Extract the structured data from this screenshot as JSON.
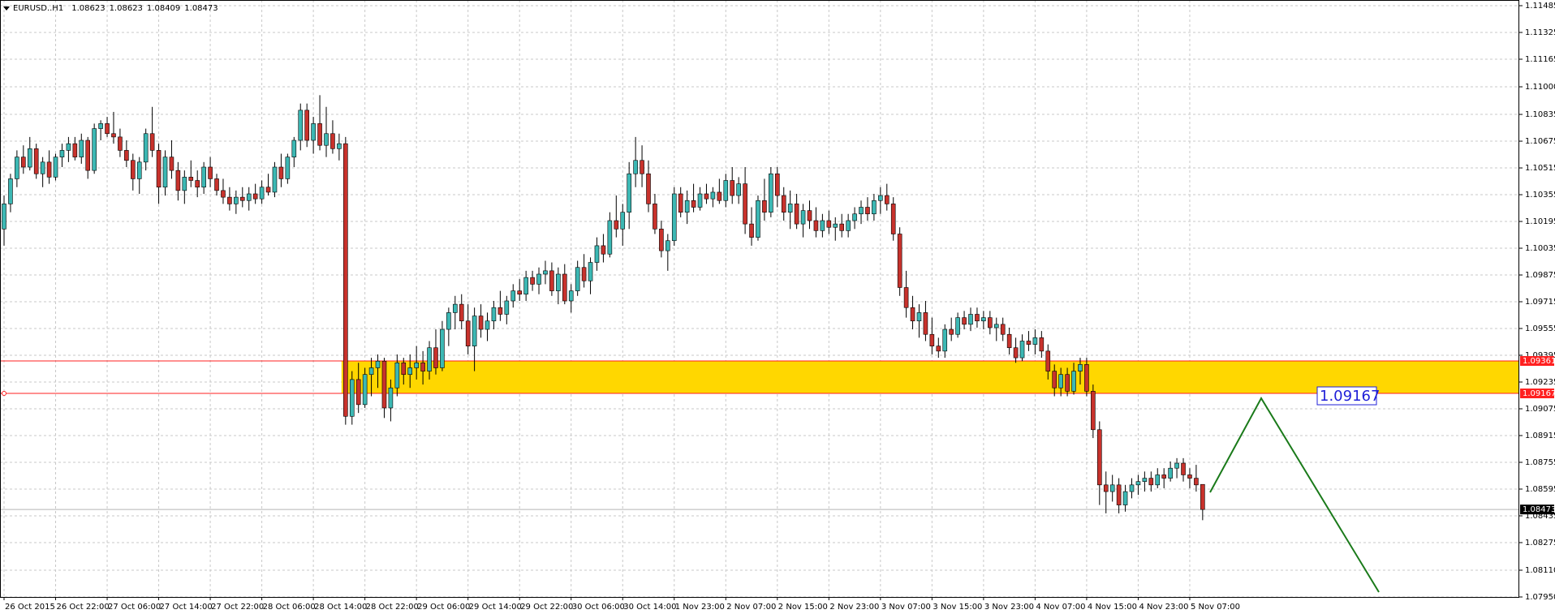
{
  "chart_data": {
    "type": "candlestick",
    "symbol": "EURUSD..H1",
    "ylim": [
      1.0795,
      1.11485
    ],
    "yticks": [
      1.11485,
      1.11325,
      1.11165,
      {
        "value": 1.11,
        "label": "1.11000"
      },
      1.10835,
      1.10675,
      1.10515,
      1.10355,
      1.10195,
      1.10035,
      1.09875,
      1.09715,
      1.09555,
      1.09395,
      1.09235,
      1.09075,
      1.08915,
      1.08755,
      1.08595,
      1.08435,
      1.08275,
      {
        "value": 1.0811,
        "label": "1.08110"
      },
      {
        "value": 1.0795,
        "label": "1.07950"
      }
    ],
    "x_labels": [
      "26 Oct 2015",
      "26 Oct 22:00",
      "27 Oct 06:00",
      "27 Oct 14:00",
      "27 Oct 22:00",
      "28 Oct 06:00",
      "28 Oct 14:00",
      "28 Oct 22:00",
      "29 Oct 06:00",
      "29 Oct 14:00",
      "29 Oct 22:00",
      "30 Oct 06:00",
      "30 Oct 14:00",
      "1 Nov 23:00",
      "2 Nov 07:00",
      "2 Nov 15:00",
      "2 Nov 23:00",
      "3 Nov 07:00",
      "3 Nov 15:00",
      "3 Nov 23:00",
      "4 Nov 07:00",
      "4 Nov 15:00",
      "4 Nov 23:00",
      "5 Nov 07:00"
    ],
    "levels": [
      1.09361,
      1.09167
    ],
    "grid": true,
    "bull_color": "#3cb8b4",
    "bear_color": "#c8322c",
    "zone_color": "#ffd700",
    "level_color": "#ff2020",
    "ohlc": [
      [
        1.1015,
        1.1035,
        1.1005,
        1.103
      ],
      [
        1.103,
        1.1048,
        1.1025,
        1.1045
      ],
      [
        1.1045,
        1.1062,
        1.104,
        1.1058
      ],
      [
        1.1058,
        1.1065,
        1.1048,
        1.1052
      ],
      [
        1.1052,
        1.107,
        1.105,
        1.1063
      ],
      [
        1.1063,
        1.1066,
        1.1045,
        1.1048
      ],
      [
        1.1048,
        1.1058,
        1.104,
        1.1055
      ],
      [
        1.1055,
        1.1062,
        1.1042,
        1.1046
      ],
      [
        1.1046,
        1.106,
        1.1044,
        1.1058
      ],
      [
        1.1058,
        1.1066,
        1.1052,
        1.1062
      ],
      [
        1.1062,
        1.107,
        1.1055,
        1.1066
      ],
      [
        1.1066,
        1.107,
        1.1056,
        1.1058
      ],
      [
        1.1058,
        1.1072,
        1.1054,
        1.1068
      ],
      [
        1.1068,
        1.107,
        1.1045,
        1.105
      ],
      [
        1.105,
        1.1078,
        1.1048,
        1.1075
      ],
      [
        1.1075,
        1.108,
        1.1068,
        1.1078
      ],
      [
        1.1078,
        1.1082,
        1.107,
        1.1072
      ],
      [
        1.1072,
        1.1085,
        1.1066,
        1.107
      ],
      [
        1.107,
        1.1075,
        1.1058,
        1.1062
      ],
      [
        1.1062,
        1.1068,
        1.1052,
        1.1056
      ],
      [
        1.1056,
        1.106,
        1.1038,
        1.1045
      ],
      [
        1.1045,
        1.1058,
        1.1036,
        1.1055
      ],
      [
        1.1055,
        1.1075,
        1.105,
        1.1072
      ],
      [
        1.1072,
        1.1088,
        1.1058,
        1.1062
      ],
      [
        1.1062,
        1.1066,
        1.103,
        1.104
      ],
      [
        1.104,
        1.1062,
        1.1035,
        1.1058
      ],
      [
        1.1058,
        1.1068,
        1.1045,
        1.105
      ],
      [
        1.105,
        1.1055,
        1.1032,
        1.1038
      ],
      [
        1.1038,
        1.105,
        1.103,
        1.1046
      ],
      [
        1.1046,
        1.1056,
        1.104,
        1.1044
      ],
      [
        1.1044,
        1.105,
        1.1034,
        1.104
      ],
      [
        1.104,
        1.1055,
        1.1036,
        1.1052
      ],
      [
        1.1052,
        1.1058,
        1.104,
        1.1045
      ],
      [
        1.1045,
        1.1048,
        1.1035,
        1.1038
      ],
      [
        1.1038,
        1.1045,
        1.103,
        1.1034
      ],
      [
        1.1034,
        1.104,
        1.1026,
        1.103
      ],
      [
        1.103,
        1.1038,
        1.1024,
        1.1034
      ],
      [
        1.1034,
        1.104,
        1.1028,
        1.1032
      ],
      [
        1.1032,
        1.104,
        1.1026,
        1.1036
      ],
      [
        1.1036,
        1.1042,
        1.103,
        1.1033
      ],
      [
        1.1033,
        1.1044,
        1.103,
        1.104
      ],
      [
        1.104,
        1.1048,
        1.1035,
        1.1037
      ],
      [
        1.1037,
        1.1055,
        1.1034,
        1.1052
      ],
      [
        1.1052,
        1.106,
        1.104,
        1.1045
      ],
      [
        1.1045,
        1.106,
        1.1042,
        1.1058
      ],
      [
        1.1058,
        1.107,
        1.1052,
        1.1068
      ],
      [
        1.1068,
        1.109,
        1.1062,
        1.1086
      ],
      [
        1.1086,
        1.109,
        1.1064,
        1.1068
      ],
      [
        1.1068,
        1.1082,
        1.106,
        1.1078
      ],
      [
        1.1078,
        1.1095,
        1.1062,
        1.1065
      ],
      [
        1.1065,
        1.1088,
        1.1058,
        1.1072
      ],
      [
        1.1072,
        1.108,
        1.106,
        1.1063
      ],
      [
        1.1063,
        1.1072,
        1.1056,
        1.1066
      ],
      [
        1.1066,
        1.107,
        1.0898,
        1.0903
      ],
      [
        1.0903,
        1.093,
        1.0898,
        1.0925
      ],
      [
        1.0925,
        1.0935,
        1.0905,
        1.091
      ],
      [
        1.091,
        1.0932,
        1.0908,
        1.0928
      ],
      [
        1.0928,
        1.0938,
        1.0915,
        1.0932
      ],
      [
        1.0932,
        1.094,
        1.092,
        1.0936
      ],
      [
        1.0936,
        1.0938,
        1.0902,
        1.0908
      ],
      [
        1.0908,
        1.0925,
        1.09,
        1.092
      ],
      [
        1.092,
        1.094,
        1.0915,
        1.0935
      ],
      [
        1.0935,
        1.0938,
        1.0922,
        1.0928
      ],
      [
        1.0928,
        1.094,
        1.092,
        1.0932
      ],
      [
        1.0932,
        1.0945,
        1.0925,
        1.0935
      ],
      [
        1.0935,
        1.0942,
        1.0922,
        1.093
      ],
      [
        1.093,
        1.0948,
        1.0925,
        1.0944
      ],
      [
        1.0944,
        1.0955,
        1.0928,
        1.0932
      ],
      [
        1.0932,
        1.096,
        1.093,
        1.0955
      ],
      [
        1.0955,
        1.0968,
        1.0945,
        1.0965
      ],
      [
        1.0965,
        1.0975,
        1.0955,
        1.097
      ],
      [
        1.097,
        1.0976,
        1.0955,
        1.096
      ],
      [
        1.096,
        1.097,
        1.094,
        1.0945
      ],
      [
        1.0945,
        1.0968,
        1.093,
        1.0963
      ],
      [
        1.0963,
        1.097,
        1.095,
        1.0955
      ],
      [
        1.0955,
        1.0965,
        1.0948,
        1.096
      ],
      [
        1.096,
        1.0972,
        1.0955,
        1.0968
      ],
      [
        1.0968,
        1.0978,
        1.096,
        1.0964
      ],
      [
        1.0964,
        1.0975,
        1.0958,
        1.0972
      ],
      [
        1.0972,
        1.0982,
        1.0968,
        1.0978
      ],
      [
        1.0978,
        1.0985,
        1.0972,
        1.0976
      ],
      [
        1.0976,
        1.099,
        1.0972,
        1.0986
      ],
      [
        1.0986,
        1.099,
        1.0978,
        1.0982
      ],
      [
        1.0982,
        1.0992,
        1.0976,
        1.0988
      ],
      [
        1.0988,
        1.0996,
        1.0982,
        1.099
      ],
      [
        1.099,
        1.0995,
        1.0975,
        1.0978
      ],
      [
        1.0978,
        1.0992,
        1.097,
        1.0988
      ],
      [
        1.0988,
        1.0994,
        1.097,
        1.0972
      ],
      [
        1.0972,
        1.0982,
        1.0965,
        1.0978
      ],
      [
        1.0978,
        1.0996,
        1.0975,
        1.0992
      ],
      [
        1.0992,
        1.1,
        1.098,
        1.0984
      ],
      [
        1.0984,
        1.0998,
        1.0976,
        1.0995
      ],
      [
        1.0995,
        1.101,
        1.099,
        1.1005
      ],
      [
        1.1005,
        1.1012,
        1.0995,
        1.1
      ],
      [
        1.1,
        1.1025,
        1.0998,
        1.102
      ],
      [
        1.102,
        1.1035,
        1.101,
        1.1015
      ],
      [
        1.1015,
        1.103,
        1.1005,
        1.1025
      ],
      [
        1.1025,
        1.1055,
        1.1015,
        1.1048
      ],
      [
        1.1048,
        1.107,
        1.104,
        1.1056
      ],
      [
        1.1056,
        1.1065,
        1.104,
        1.1048
      ],
      [
        1.1048,
        1.1056,
        1.1025,
        1.103
      ],
      [
        1.103,
        1.1036,
        1.1012,
        1.1015
      ],
      [
        1.1015,
        1.102,
        1.0998,
        1.1002
      ],
      [
        1.1002,
        1.1012,
        1.099,
        1.1008
      ],
      [
        1.1008,
        1.104,
        1.1005,
        1.1036
      ],
      [
        1.1036,
        1.104,
        1.1022,
        1.1025
      ],
      [
        1.1025,
        1.1038,
        1.1018,
        1.1032
      ],
      [
        1.1032,
        1.1042,
        1.1025,
        1.1028
      ],
      [
        1.1028,
        1.104,
        1.1026,
        1.1036
      ],
      [
        1.1036,
        1.1042,
        1.103,
        1.1033
      ],
      [
        1.1033,
        1.104,
        1.1028,
        1.1037
      ],
      [
        1.1037,
        1.1045,
        1.103,
        1.1032
      ],
      [
        1.1032,
        1.1048,
        1.1028,
        1.1044
      ],
      [
        1.1044,
        1.1052,
        1.103,
        1.1035
      ],
      [
        1.1035,
        1.1046,
        1.103,
        1.1042
      ],
      [
        1.1042,
        1.1052,
        1.1012,
        1.1018
      ],
      [
        1.1018,
        1.1028,
        1.1005,
        1.101
      ],
      [
        1.101,
        1.1035,
        1.1008,
        1.1032
      ],
      [
        1.1032,
        1.1045,
        1.102,
        1.1025
      ],
      [
        1.1025,
        1.1052,
        1.1022,
        1.1048
      ],
      [
        1.1048,
        1.1052,
        1.1028,
        1.1035
      ],
      [
        1.1035,
        1.104,
        1.102,
        1.1025
      ],
      [
        1.1025,
        1.1038,
        1.1015,
        1.103
      ],
      [
        1.103,
        1.1036,
        1.1015,
        1.1018
      ],
      [
        1.1018,
        1.103,
        1.101,
        1.1026
      ],
      [
        1.1026,
        1.1032,
        1.1015,
        1.102
      ],
      [
        1.102,
        1.1028,
        1.101,
        1.1014
      ],
      [
        1.1014,
        1.1024,
        1.101,
        1.102
      ],
      [
        1.102,
        1.1026,
        1.1012,
        1.1016
      ],
      [
        1.1016,
        1.1022,
        1.1008,
        1.1018
      ],
      [
        1.1018,
        1.1024,
        1.101,
        1.1014
      ],
      [
        1.1014,
        1.1024,
        1.101,
        1.102
      ],
      [
        1.102,
        1.1028,
        1.1015,
        1.1024
      ],
      [
        1.1024,
        1.1032,
        1.1018,
        1.1028
      ],
      [
        1.1028,
        1.1034,
        1.102,
        1.1024
      ],
      [
        1.1024,
        1.1036,
        1.102,
        1.1032
      ],
      [
        1.1032,
        1.104,
        1.1024,
        1.1035
      ],
      [
        1.1035,
        1.1042,
        1.1026,
        1.103
      ],
      [
        1.103,
        1.1034,
        1.1008,
        1.1012
      ],
      [
        1.1012,
        1.1016,
        1.0975,
        1.098
      ],
      [
        1.098,
        1.099,
        1.0962,
        1.0968
      ],
      [
        1.0968,
        1.0975,
        1.0955,
        1.096
      ],
      [
        1.096,
        1.097,
        1.095,
        1.0965
      ],
      [
        1.0965,
        1.0972,
        1.0948,
        1.0952
      ],
      [
        1.0952,
        1.0962,
        1.094,
        1.0945
      ],
      [
        1.0945,
        1.095,
        1.0938,
        1.0942
      ],
      [
        1.0942,
        1.0958,
        1.0938,
        1.0955
      ],
      [
        1.0955,
        1.0962,
        1.0948,
        1.0952
      ],
      [
        1.0952,
        1.0965,
        1.095,
        1.0962
      ],
      [
        1.0962,
        1.0966,
        1.0955,
        1.0958
      ],
      [
        1.0958,
        1.0968,
        1.0954,
        1.0964
      ],
      [
        1.0964,
        1.0968,
        1.0956,
        1.096
      ],
      [
        1.096,
        1.0966,
        1.0955,
        1.0962
      ],
      [
        1.0962,
        1.0966,
        1.0952,
        1.0956
      ],
      [
        1.0956,
        1.0962,
        1.0948,
        1.0958
      ],
      [
        1.0958,
        1.0962,
        1.0948,
        1.0952
      ],
      [
        1.0952,
        1.0956,
        1.094,
        1.0944
      ],
      [
        1.0944,
        1.095,
        1.0935,
        1.0938
      ],
      [
        1.0938,
        1.0952,
        1.0936,
        1.0948
      ],
      [
        1.0948,
        1.0954,
        1.0942,
        1.0946
      ],
      [
        1.0946,
        1.0955,
        1.094,
        1.095
      ],
      [
        1.095,
        1.0954,
        1.0938,
        1.0942
      ],
      [
        1.0942,
        1.0946,
        1.0925,
        1.093
      ],
      [
        1.093,
        1.0934,
        1.0915,
        1.092
      ],
      [
        1.092,
        1.0932,
        1.0915,
        1.0928
      ],
      [
        1.0928,
        1.0932,
        1.0915,
        1.0918
      ],
      [
        1.0918,
        1.0935,
        1.0916,
        1.093
      ],
      [
        1.093,
        1.0938,
        1.0922,
        1.0934
      ],
      [
        1.0934,
        1.0938,
        1.0915,
        1.0918
      ],
      [
        1.0918,
        1.0922,
        1.089,
        1.0895
      ],
      [
        1.0895,
        1.09,
        1.085,
        1.0862
      ],
      [
        1.0862,
        1.087,
        1.0845,
        1.0858
      ],
      [
        1.0858,
        1.0868,
        1.0852,
        1.0862
      ],
      [
        1.0862,
        1.0866,
        1.0845,
        1.085
      ],
      [
        1.085,
        1.0862,
        1.0846,
        1.0858
      ],
      [
        1.0858,
        1.0866,
        1.0854,
        1.0862
      ],
      [
        1.0862,
        1.0868,
        1.0856,
        1.0864
      ],
      [
        1.0864,
        1.087,
        1.0858,
        1.0866
      ],
      [
        1.0866,
        1.087,
        1.0858,
        1.0862
      ],
      [
        1.0862,
        1.0872,
        1.086,
        1.0868
      ],
      [
        1.0868,
        1.0872,
        1.086,
        1.0866
      ],
      [
        1.0866,
        1.0876,
        1.0864,
        1.0872
      ],
      [
        1.0872,
        1.0878,
        1.0866,
        1.0875
      ],
      [
        1.0875,
        1.0878,
        1.0864,
        1.0868
      ],
      [
        1.0868,
        1.0872,
        1.086,
        1.0866
      ],
      [
        1.0866,
        1.0874,
        1.0858,
        1.0862
      ],
      [
        1.08623,
        1.08623,
        1.08409,
        1.08473
      ]
    ]
  }
}
